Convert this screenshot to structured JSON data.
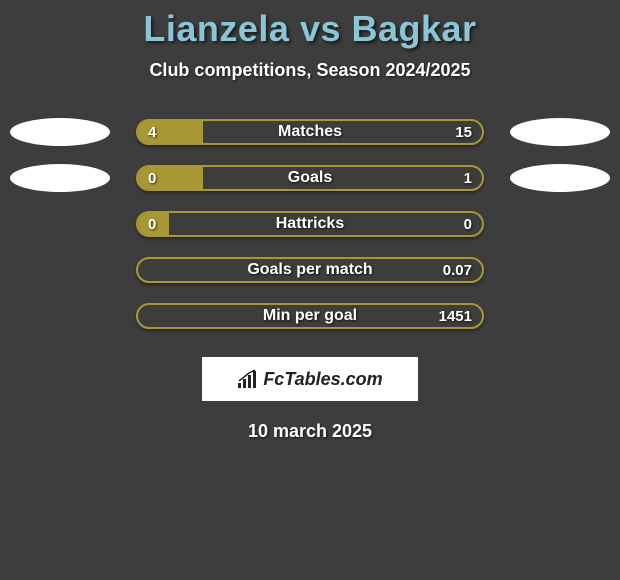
{
  "title": "Lianzela vs Bagkar",
  "subtitle": "Club competitions, Season 2024/2025",
  "date": "10 march 2025",
  "logo_text": "FcTables.com",
  "colors": {
    "background": "#3d3d3d",
    "title_color": "#8ac5d6",
    "bar_border": "#a89833",
    "bar_fill": "#a89833",
    "text": "#ffffff",
    "ellipse": "#ffffff",
    "logo_bg": "#ffffff",
    "logo_text": "#222222"
  },
  "stats": [
    {
      "label": "Matches",
      "left_value": "4",
      "right_value": "15",
      "left_fill_pct": 19,
      "right_fill_pct": 0,
      "show_ellipses": true
    },
    {
      "label": "Goals",
      "left_value": "0",
      "right_value": "1",
      "left_fill_pct": 19,
      "right_fill_pct": 0,
      "show_ellipses": true
    },
    {
      "label": "Hattricks",
      "left_value": "0",
      "right_value": "0",
      "left_fill_pct": 9,
      "right_fill_pct": 0,
      "show_ellipses": false
    },
    {
      "label": "Goals per match",
      "left_value": "",
      "right_value": "0.07",
      "left_fill_pct": 0,
      "right_fill_pct": 0,
      "show_ellipses": false
    },
    {
      "label": "Min per goal",
      "left_value": "",
      "right_value": "1451",
      "left_fill_pct": 0,
      "right_fill_pct": 0,
      "show_ellipses": false
    }
  ]
}
